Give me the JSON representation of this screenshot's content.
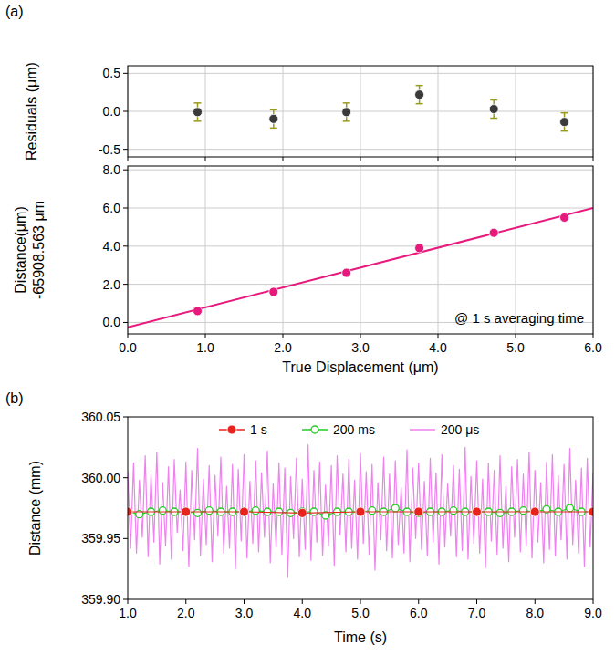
{
  "chart_data": [
    {
      "type": "scatter",
      "title": "(a)",
      "y_label": "Residuals (μm)",
      "xlim": [
        0,
        6
      ],
      "ylim": [
        -0.6,
        0.6
      ],
      "xticks": [
        {
          "value": 0,
          "label": "0.0"
        },
        {
          "value": 1,
          "label": "1.0"
        },
        {
          "value": 2,
          "label": "2.0"
        },
        {
          "value": 3,
          "label": "3.0"
        },
        {
          "value": 4,
          "label": "4.0"
        },
        {
          "value": 5,
          "label": "5.0"
        },
        {
          "value": 6,
          "label": "6.0"
        }
      ],
      "yticks": [
        -0.5,
        {
          "value": 0,
          "label": "0.0"
        },
        0.5
      ],
      "grid": true,
      "tick_labels": "y",
      "series": [
        {
          "color": "#3a3a3a",
          "marker": "circle",
          "line_style": "none",
          "x": [
            0.9,
            1.88,
            2.82,
            3.76,
            4.72,
            5.63
          ],
          "values": [
            -0.01,
            -0.1,
            -0.01,
            0.22,
            0.03,
            -0.14
          ],
          "errors": [
            0.12,
            0.12,
            0.12,
            0.12,
            0.12,
            0.12
          ]
        }
      ]
    },
    {
      "type": "scatter",
      "x_label": "True Displacement (μm)",
      "y_label": "Distance(μm)\n-65908.563 μm",
      "xlim": [
        0,
        6
      ],
      "ylim": [
        -0.6,
        8.2
      ],
      "xticks": [
        {
          "value": 0,
          "label": "0.0"
        },
        {
          "value": 1,
          "label": "1.0"
        },
        {
          "value": 2,
          "label": "2.0"
        },
        {
          "value": 3,
          "label": "3.0"
        },
        {
          "value": 4,
          "label": "4.0"
        },
        {
          "value": 5,
          "label": "5.0"
        },
        {
          "value": 6,
          "label": "6.0"
        }
      ],
      "yticks": [
        {
          "value": 0,
          "label": "0.0"
        },
        {
          "value": 2,
          "label": "2.0"
        },
        {
          "value": 4,
          "label": "4.0"
        },
        {
          "value": 6,
          "label": "6.0"
        },
        {
          "value": 8,
          "label": "8.0"
        }
      ],
      "grid": true,
      "annotations": [
        "@ 1 s averaging time"
      ],
      "series": [
        {
          "type": "line",
          "color": "#e8197d",
          "marker": "none",
          "line_style": "solid",
          "x": [
            0,
            6
          ],
          "values": [
            -0.25,
            6.0
          ]
        },
        {
          "type": "scatter",
          "color": "#e8197d",
          "marker": "circle",
          "line_style": "none",
          "x": [
            0.9,
            1.88,
            2.82,
            3.76,
            4.72,
            5.63
          ],
          "values": [
            0.6,
            1.6,
            2.6,
            3.9,
            4.7,
            5.5
          ]
        }
      ]
    },
    {
      "type": "line",
      "title": "(b)",
      "x_label": "Time (s)",
      "y_label": "Distance (mm)",
      "xlim": [
        1,
        9
      ],
      "ylim": [
        359.9,
        360.05
      ],
      "xticks": [
        {
          "value": 1,
          "label": "1.0"
        },
        {
          "value": 2,
          "label": "2.0"
        },
        {
          "value": 3,
          "label": "3.0"
        },
        {
          "value": 4,
          "label": "4.0"
        },
        {
          "value": 5,
          "label": "5.0"
        },
        {
          "value": 6,
          "label": "6.0"
        },
        {
          "value": 7,
          "label": "7.0"
        },
        {
          "value": 8,
          "label": "8.0"
        },
        {
          "value": 9,
          "label": "9.0"
        }
      ],
      "yticks": [
        {
          "value": 359.9,
          "label": "359.90"
        },
        359.95,
        {
          "value": 360,
          "label": "360.00"
        },
        360.05
      ],
      "grid": false,
      "legend": "top",
      "series": [
        {
          "name": "200 μs",
          "color": "#ee82ee",
          "marker": "none",
          "line_style": "solid",
          "x": [
            1,
            1.05,
            1.1,
            1.15,
            1.2,
            1.25,
            1.3,
            1.35,
            1.4,
            1.45,
            1.5,
            1.55,
            1.6,
            1.65,
            1.7,
            1.75,
            1.8,
            1.85,
            1.9,
            1.95,
            2,
            2.05,
            2.1,
            2.15,
            2.2,
            2.25,
            2.3,
            2.35,
            2.4,
            2.45,
            2.5,
            2.55,
            2.6,
            2.65,
            2.7,
            2.75,
            2.8,
            2.85,
            2.9,
            2.95,
            3,
            3.05,
            3.1,
            3.15,
            3.2,
            3.25,
            3.3,
            3.35,
            3.4,
            3.45,
            3.5,
            3.55,
            3.6,
            3.65,
            3.7,
            3.75,
            3.8,
            3.85,
            3.9,
            3.95,
            4,
            4.05,
            4.1,
            4.15,
            4.2,
            4.25,
            4.3,
            4.35,
            4.4,
            4.45,
            4.5,
            4.55,
            4.6,
            4.65,
            4.7,
            4.75,
            4.8,
            4.85,
            4.9,
            4.95,
            5,
            5.05,
            5.1,
            5.15,
            5.2,
            5.25,
            5.3,
            5.35,
            5.4,
            5.45,
            5.5,
            5.55,
            5.6,
            5.65,
            5.7,
            5.75,
            5.8,
            5.85,
            5.9,
            5.95,
            6,
            6.05,
            6.1,
            6.15,
            6.2,
            6.25,
            6.3,
            6.35,
            6.4,
            6.45,
            6.5,
            6.55,
            6.6,
            6.65,
            6.7,
            6.75,
            6.8,
            6.85,
            6.9,
            6.95,
            7,
            7.05,
            7.1,
            7.15,
            7.2,
            7.25,
            7.3,
            7.35,
            7.4,
            7.45,
            7.5,
            7.55,
            7.6,
            7.65,
            7.7,
            7.75,
            7.8,
            7.85,
            7.9,
            7.95,
            8,
            8.05,
            8.1,
            8.15,
            8.2,
            8.25,
            8.3,
            8.35,
            8.4,
            8.45,
            8.5,
            8.55,
            8.6,
            8.65,
            8.7,
            8.75,
            8.8,
            8.85,
            8.9,
            8.95,
            9
          ],
          "values": [
            360.005,
            359.942,
            360.012,
            359.938,
            359.998,
            359.951,
            360.018,
            359.935,
            360.003,
            359.947,
            360.021,
            359.929,
            359.996,
            359.944,
            360.009,
            359.933,
            360.015,
            359.955,
            359.99,
            359.94,
            360.013,
            359.927,
            360.006,
            359.949,
            360.024,
            359.936,
            359.999,
            359.945,
            360.01,
            359.931,
            360.002,
            359.952,
            360.017,
            359.938,
            359.993,
            359.942,
            360.011,
            359.925,
            360.007,
            359.948,
            360.019,
            359.934,
            359.997,
            359.946,
            360.014,
            359.939,
            360.004,
            359.951,
            360.022,
            359.93,
            359.995,
            359.943,
            360.012,
            359.937,
            360.008,
            359.918,
            360.001,
            359.95,
            360.016,
            359.935,
            359.999,
            359.941,
            360.027,
            359.932,
            360.006,
            359.947,
            360.013,
            359.936,
            359.994,
            359.944,
            360.01,
            359.928,
            360.018,
            359.953,
            360.003,
            359.939,
            360.015,
            359.942,
            359.998,
            359.933,
            360.02,
            359.946,
            360.005,
            359.937,
            360.011,
            359.924,
            359.996,
            359.949,
            360.017,
            359.94,
            360.003,
            359.934,
            360.014,
            359.945,
            359.992,
            359.938,
            360.023,
            359.931,
            360.008,
            359.95,
            360.012,
            359.941,
            359.997,
            359.936,
            360.016,
            359.947,
            360.004,
            359.929,
            360.019,
            359.943,
            359.995,
            359.952,
            360.01,
            359.935,
            360.007,
            359.94,
            360.025,
            359.933,
            360.001,
            359.946,
            360.014,
            359.938,
            359.999,
            359.926,
            360.012,
            359.948,
            360.006,
            359.937,
            360.018,
            359.942,
            359.993,
            359.931,
            360.009,
            359.951,
            360.015,
            359.939,
            360.003,
            359.944,
            360.021,
            359.934,
            360.006,
            359.947,
            359.996,
            359.93,
            360.013,
            359.941,
            360.019,
            359.936,
            360.002,
            359.949,
            360.011,
            359.933,
            360.024,
            359.945,
            359.998,
            359.938,
            360.008,
            359.927,
            360.016,
            359.943,
            360.004
          ]
        },
        {
          "name": "200 ms",
          "color": "#22cc22",
          "marker": "open_circle",
          "line_style": "solid",
          "x": [
            1,
            1.2,
            1.4,
            1.6,
            1.8,
            2,
            2.2,
            2.4,
            2.6,
            2.8,
            3,
            3.2,
            3.4,
            3.6,
            3.8,
            4,
            4.2,
            4.4,
            4.6,
            4.8,
            5,
            5.2,
            5.4,
            5.6,
            5.8,
            6,
            6.2,
            6.4,
            6.6,
            6.8,
            7,
            7.2,
            7.4,
            7.6,
            7.8,
            8,
            8.2,
            8.4,
            8.6,
            8.8,
            9
          ],
          "values": [
            359.972,
            359.97,
            359.972,
            359.973,
            359.972,
            359.972,
            359.971,
            359.973,
            359.972,
            359.972,
            359.972,
            359.973,
            359.972,
            359.972,
            359.971,
            359.972,
            359.972,
            359.969,
            359.972,
            359.972,
            359.972,
            359.973,
            359.972,
            359.975,
            359.972,
            359.971,
            359.972,
            359.972,
            359.973,
            359.972,
            359.972,
            359.972,
            359.971,
            359.972,
            359.973,
            359.972,
            359.974,
            359.972,
            359.975,
            359.972,
            359.972
          ]
        },
        {
          "name": "1 s",
          "color": "#e8231e",
          "marker": "circle",
          "line_style": "solid",
          "x": [
            1,
            2,
            3,
            4,
            5,
            6,
            7,
            8,
            9
          ],
          "values": [
            359.972,
            359.972,
            359.972,
            359.971,
            359.972,
            359.972,
            359.972,
            359.972,
            359.972
          ]
        }
      ]
    }
  ]
}
